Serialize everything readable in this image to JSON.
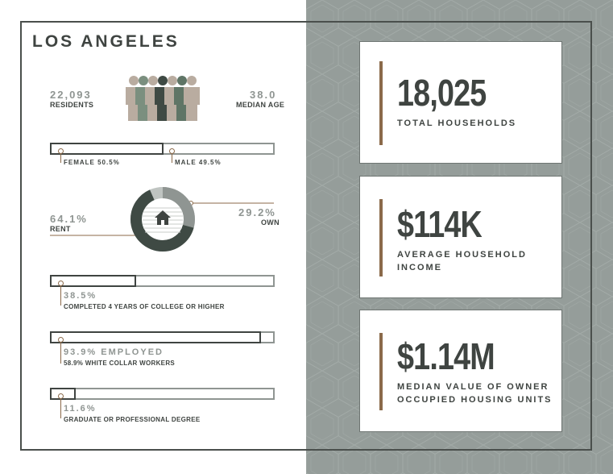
{
  "title": "LOS ANGELES",
  "residents": {
    "value": "22,093",
    "label": "RESIDENTS"
  },
  "median_age": {
    "value": "38.0",
    "label": "MEDIAN AGE"
  },
  "gender": {
    "female_label": "FEMALE 50.5%",
    "male_label": "MALE 49.5%",
    "female_share": 0.505
  },
  "housing": {
    "rent_value": "64.1%",
    "rent_label": "RENT",
    "own_value": "29.2%",
    "own_label": "OWN",
    "rent_share": 0.641,
    "own_share": 0.292
  },
  "college": {
    "value": "38.5%",
    "label": "COMPLETED 4 YEARS OF COLLEGE OR HIGHER",
    "share": 0.385
  },
  "employment": {
    "value": "93.9% EMPLOYED",
    "label": "58.9% WHITE COLLAR WORKERS",
    "share": 0.939
  },
  "graduate": {
    "value": "11.6%",
    "label": "GRADUATE OR PROFESSIONAL DEGREE",
    "share": 0.116
  },
  "cards": [
    {
      "value": "18,025",
      "label": "TOTAL HOUSEHOLDS"
    },
    {
      "value": "$114K",
      "label_line1": "AVERAGE HOUSEHOLD",
      "label_line2": "INCOME"
    },
    {
      "value": "$1.14M",
      "label_line1": "MEDIAN VALUE OF OWNER",
      "label_line2": "OCCUPIED HOUSING UNITS"
    }
  ],
  "colors": {
    "dark": "#3f4441",
    "gray": "#8f9592",
    "accent": "#8b6a4a",
    "panel": "#959d9a"
  },
  "icons": {
    "people": "people-group-icon",
    "house": "house-icon"
  }
}
